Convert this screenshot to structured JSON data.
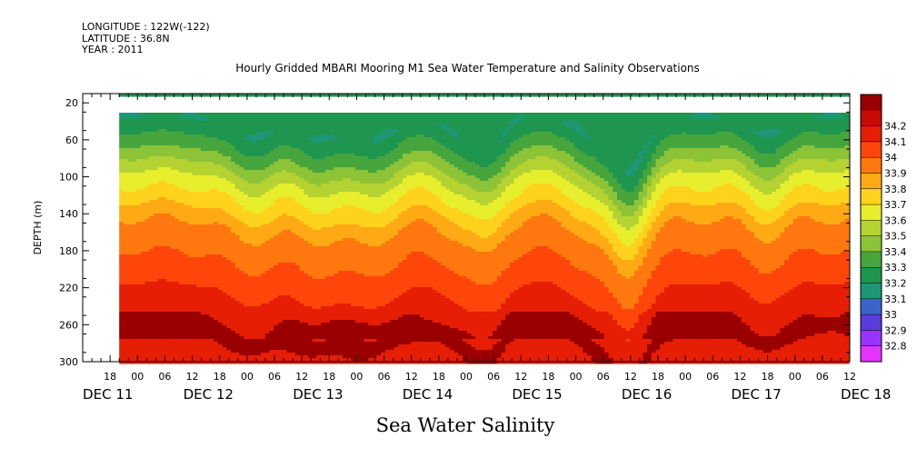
{
  "header": {
    "longitude": "LONGITUDE : 122W(-122)",
    "latitude": "LATITUDE : 36.8N",
    "year": "YEAR : 2011",
    "title": "Hourly Gridded MBARI Mooring M1 Sea Water Temperature and Salinity Observations"
  },
  "chart_data": {
    "type": "heatmap",
    "title": "Hourly Gridded MBARI Mooring M1 Sea Water Temperature and Salinity Observations",
    "xlabel": "Sea Water Salinity",
    "ylabel": "DEPTH (m)",
    "y_ticks": [
      20,
      60,
      100,
      140,
      180,
      220,
      260,
      300
    ],
    "y_range": [
      10,
      300
    ],
    "y_reversed": true,
    "x_range_hours": [
      0,
      168
    ],
    "x_hour_ticks": [
      "18",
      "00",
      "06",
      "12",
      "18",
      "00",
      "06",
      "12",
      "18",
      "00",
      "06",
      "12",
      "18",
      "00",
      "06",
      "12",
      "18",
      "00",
      "06",
      "12",
      "18",
      "00",
      "06",
      "12",
      "18",
      "00",
      "06",
      "12",
      "18",
      "00",
      "06",
      "12"
    ],
    "x_date_labels": [
      "DEC 11",
      "DEC 12",
      "DEC 13",
      "DEC 14",
      "DEC 15",
      "DEC 16",
      "DEC 17",
      "DEC 18"
    ],
    "data_start": "Dec 11 2011 21:00",
    "data_end": "Dec 18 2011 12:00",
    "missing_depth_band": [
      12,
      32
    ],
    "colorbar": {
      "levels": [
        32.8,
        32.9,
        33,
        33.1,
        33.2,
        33.3,
        33.4,
        33.5,
        33.6,
        33.7,
        33.8,
        33.9,
        34,
        34.1,
        34.2
      ],
      "labels": [
        "32.8",
        "32.9",
        "33",
        "33.1",
        "33.2",
        "33.3",
        "33.4",
        "33.5",
        "33.6",
        "33.7",
        "33.8",
        "33.9",
        "34",
        "34.1",
        "34.2"
      ],
      "colors": [
        "#e633ff",
        "#9933ff",
        "#5a3cdc",
        "#3c64c8",
        "#1e9678",
        "#1e9650",
        "#46a53c",
        "#8cc337",
        "#b4d232",
        "#e6ee2d",
        "#ffd21e",
        "#ffaa14",
        "#ff780f",
        "#ff460a",
        "#e61e05",
        "#c80a05",
        "#9b0000"
      ]
    },
    "series_profile": {
      "depth_m": [
        10,
        35,
        60,
        80,
        100,
        120,
        140,
        160,
        180,
        200,
        220,
        240,
        260,
        280,
        300
      ],
      "salinity": [
        33.25,
        33.2,
        33.35,
        33.5,
        33.65,
        33.75,
        33.88,
        33.95,
        34.0,
        34.05,
        34.12,
        34.18,
        34.22,
        34.18,
        34.18
      ]
    }
  }
}
